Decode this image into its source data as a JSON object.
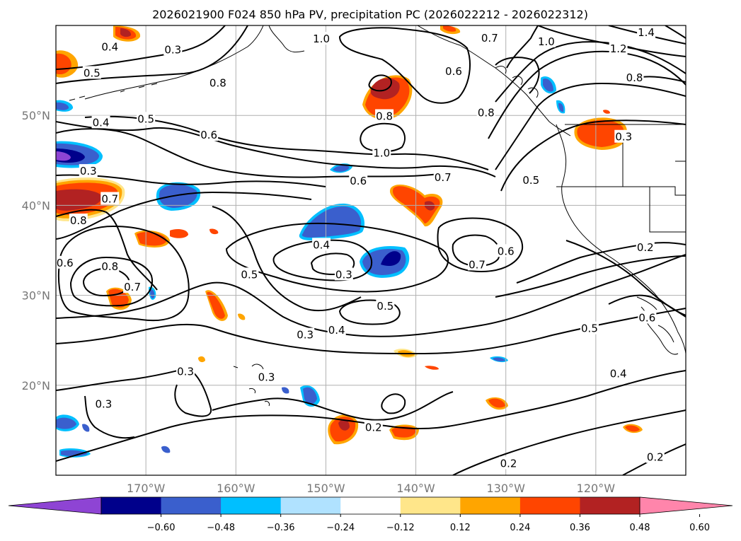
{
  "title": "2026021900 F024 850 hPa PV, precipitation PC (2026022212 - 2026022312)",
  "map": {
    "lon_range": [
      -180,
      -110
    ],
    "lat_range": [
      10,
      60
    ],
    "lon_ticks": [
      {
        "lon": -170,
        "label": "170°W"
      },
      {
        "lon": -160,
        "label": "160°W"
      },
      {
        "lon": -150,
        "label": "150°W"
      },
      {
        "lon": -140,
        "label": "140°W"
      },
      {
        "lon": -130,
        "label": "130°W"
      },
      {
        "lon": -120,
        "label": "120°W"
      }
    ],
    "lat_ticks": [
      {
        "lat": 50,
        "label": "50°N"
      },
      {
        "lat": 40,
        "label": "40°N"
      },
      {
        "lat": 30,
        "label": "30°N"
      },
      {
        "lat": 20,
        "label": "20°N"
      }
    ],
    "grid": true
  },
  "contour_labels": [
    {
      "text": "0.4",
      "lon": -174,
      "lat": 57.6
    },
    {
      "text": "0.3",
      "lon": -167,
      "lat": 57.3
    },
    {
      "text": "0.5",
      "lon": -176,
      "lat": 54.7
    },
    {
      "text": "0.8",
      "lon": -162,
      "lat": 53.6
    },
    {
      "text": "0.5",
      "lon": -170,
      "lat": 49.6
    },
    {
      "text": "0.4",
      "lon": -175,
      "lat": 49.2
    },
    {
      "text": "0.6",
      "lon": -163,
      "lat": 47.8
    },
    {
      "text": "0.3",
      "lon": -176.4,
      "lat": 43.8
    },
    {
      "text": "0.7",
      "lon": -174,
      "lat": 40.7
    },
    {
      "text": "0.8",
      "lon": -177.5,
      "lat": 38.3
    },
    {
      "text": "0.6",
      "lon": -179,
      "lat": 33.6
    },
    {
      "text": "0.8",
      "lon": -174,
      "lat": 33.2
    },
    {
      "text": "0.7",
      "lon": -171.5,
      "lat": 30.9
    },
    {
      "text": "1.0",
      "lon": -150.5,
      "lat": 58.5
    },
    {
      "text": "0.8",
      "lon": -143.5,
      "lat": 49.9
    },
    {
      "text": "1.0",
      "lon": -143.8,
      "lat": 45.8
    },
    {
      "text": "0.6",
      "lon": -146.4,
      "lat": 42.7
    },
    {
      "text": "0.7",
      "lon": -137,
      "lat": 43.1
    },
    {
      "text": "0.5",
      "lon": -127.2,
      "lat": 42.8
    },
    {
      "text": "0.6",
      "lon": -135.8,
      "lat": 54.9
    },
    {
      "text": "0.8",
      "lon": -132.2,
      "lat": 50.3
    },
    {
      "text": "0.7",
      "lon": -131.8,
      "lat": 58.6
    },
    {
      "text": "1.0",
      "lon": -125.5,
      "lat": 58.2
    },
    {
      "text": "1.2",
      "lon": -117.5,
      "lat": 57.4
    },
    {
      "text": "1.4",
      "lon": -114.4,
      "lat": 59.2
    },
    {
      "text": "0.8",
      "lon": -115.7,
      "lat": 54.2
    },
    {
      "text": "0.3",
      "lon": -116.9,
      "lat": 47.6
    },
    {
      "text": "0.4",
      "lon": -150.5,
      "lat": 35.6
    },
    {
      "text": "0.5",
      "lon": -158.5,
      "lat": 32.3
    },
    {
      "text": "0.3",
      "lon": -148,
      "lat": 32.3
    },
    {
      "text": "0.7",
      "lon": -133.2,
      "lat": 33.4
    },
    {
      "text": "0.6",
      "lon": -130,
      "lat": 34.9
    },
    {
      "text": "0.5",
      "lon": -143.4,
      "lat": 28.8
    },
    {
      "text": "0.3",
      "lon": -152.3,
      "lat": 25.6
    },
    {
      "text": "0.4",
      "lon": -148.8,
      "lat": 26.1
    },
    {
      "text": "0.5",
      "lon": -120.7,
      "lat": 26.3
    },
    {
      "text": "0.6",
      "lon": -114.3,
      "lat": 27.5
    },
    {
      "text": "0.2",
      "lon": -114.5,
      "lat": 35.3
    },
    {
      "text": "0.4",
      "lon": -117.5,
      "lat": 21.3
    },
    {
      "text": "0.3",
      "lon": -165.6,
      "lat": 21.5
    },
    {
      "text": "0.3",
      "lon": -174.7,
      "lat": 17.9
    },
    {
      "text": "0.3",
      "lon": -156.6,
      "lat": 20.9
    },
    {
      "text": "0.2",
      "lon": -144.7,
      "lat": 15.3
    },
    {
      "text": "0.2",
      "lon": -129.7,
      "lat": 11.3
    },
    {
      "text": "0.2",
      "lon": -113.4,
      "lat": 12.0
    }
  ],
  "colorbar": {
    "colors": [
      "#8e44d4",
      "#00008b",
      "#3a5fcd",
      "#00bfff",
      "#b0e2ff",
      "#ffffff",
      "#ffe68a",
      "#ffa500",
      "#ff4500",
      "#b22222",
      "#ff85ab"
    ],
    "labels": [
      "−0.60",
      "−0.48",
      "−0.36",
      "−0.24",
      "−0.12",
      "0.12",
      "0.24",
      "0.36",
      "0.48",
      "0.60"
    ],
    "extend": "both"
  }
}
